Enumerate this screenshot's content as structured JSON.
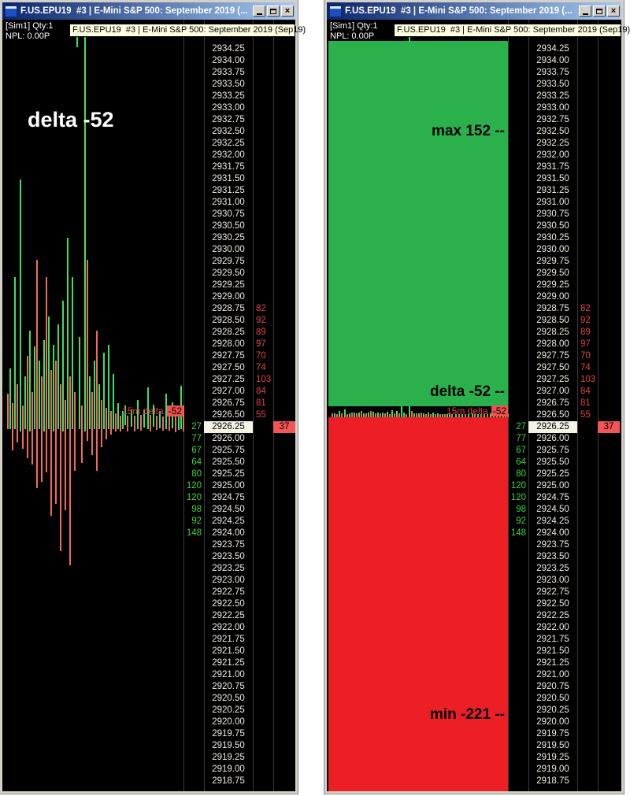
{
  "titlebar": {
    "title": "F.US.EPU19  #3 | E-Mini S&P 500: September 2019 (...",
    "close_glyph": "×"
  },
  "info": {
    "line1": "[Sim1]  Qty:1",
    "line2": "NPL: 0.00P"
  },
  "tooltip": {
    "text": "F.US.EPU19  #3 | E-Mini S&P 500: September 2019 (Sep19)"
  },
  "chart": {
    "big_label": "delta -52",
    "mini_label": "15m delta",
    "mini_value": "-52",
    "bars": [
      [
        6,
        475,
        520,
        "r"
      ],
      [
        9,
        443,
        520,
        "g"
      ],
      [
        12,
        487,
        547,
        "r"
      ],
      [
        15,
        327,
        520,
        "g"
      ],
      [
        18,
        463,
        537,
        "r"
      ],
      [
        22,
        203,
        523,
        "g"
      ],
      [
        25,
        490,
        545,
        "r"
      ],
      [
        28,
        453,
        520,
        "g"
      ],
      [
        31,
        427,
        557,
        "r"
      ],
      [
        34,
        395,
        523,
        "g"
      ],
      [
        37,
        473,
        565,
        "r"
      ],
      [
        40,
        415,
        520,
        "g"
      ],
      [
        43,
        305,
        595,
        "r"
      ],
      [
        46,
        433,
        520,
        "g"
      ],
      [
        49,
        453,
        587,
        "r"
      ],
      [
        52,
        407,
        523,
        "g"
      ],
      [
        55,
        327,
        575,
        "r"
      ],
      [
        58,
        377,
        520,
        "g"
      ],
      [
        61,
        445,
        630,
        "r"
      ],
      [
        64,
        413,
        523,
        "g"
      ],
      [
        67,
        433,
        615,
        "r"
      ],
      [
        70,
        387,
        520,
        "g"
      ],
      [
        73,
        463,
        675,
        "r"
      ],
      [
        76,
        357,
        523,
        "g"
      ],
      [
        79,
        483,
        623,
        "r"
      ],
      [
        82,
        277,
        520,
        "g"
      ],
      [
        85,
        453,
        693,
        "r"
      ],
      [
        88,
        327,
        520,
        "g"
      ],
      [
        91,
        473,
        573,
        "r"
      ],
      [
        94,
        21,
        35,
        "g"
      ],
      [
        97,
        403,
        520,
        "g"
      ],
      [
        100,
        490,
        563,
        "r"
      ],
      [
        104,
        21,
        523,
        "g"
      ],
      [
        107,
        305,
        535,
        "r"
      ],
      [
        110,
        453,
        520,
        "g"
      ],
      [
        113,
        473,
        553,
        "r"
      ],
      [
        116,
        433,
        520,
        "g"
      ],
      [
        119,
        395,
        573,
        "r"
      ],
      [
        122,
        463,
        520,
        "g"
      ],
      [
        125,
        483,
        543,
        "r"
      ],
      [
        128,
        423,
        520,
        "g"
      ],
      [
        131,
        493,
        533,
        "r"
      ],
      [
        134,
        413,
        520,
        "g"
      ],
      [
        137,
        497,
        527,
        "r"
      ],
      [
        140,
        450,
        520,
        "g"
      ],
      [
        143,
        500,
        523,
        "r"
      ],
      [
        146,
        487,
        520,
        "g"
      ],
      [
        149,
        503,
        523,
        "r"
      ],
      [
        152,
        497,
        520,
        "g"
      ],
      [
        155,
        490,
        515,
        "g"
      ],
      [
        158,
        503,
        523,
        "r"
      ],
      [
        163,
        495,
        517,
        "g"
      ],
      [
        167,
        503,
        523,
        "r"
      ],
      [
        171,
        483,
        520,
        "g"
      ],
      [
        175,
        502,
        522,
        "r"
      ],
      [
        179,
        495,
        518,
        "g"
      ],
      [
        184,
        467,
        520,
        "g"
      ],
      [
        187,
        502,
        523,
        "r"
      ],
      [
        191,
        489,
        517,
        "g"
      ],
      [
        195,
        503,
        521,
        "r"
      ],
      [
        199,
        497,
        519,
        "g"
      ],
      [
        203,
        504,
        522,
        "r"
      ],
      [
        207,
        475,
        520,
        "g"
      ],
      [
        211,
        501,
        522,
        "r"
      ],
      [
        215,
        486,
        519,
        "g"
      ],
      [
        219,
        494,
        524,
        "r"
      ],
      [
        223,
        499,
        521,
        "g"
      ],
      [
        226,
        465,
        520,
        "g"
      ],
      [
        229,
        490,
        523,
        "r"
      ]
    ]
  },
  "overlay": {
    "max_label": "max 152 --",
    "delta_label": "delta -52 --",
    "min_label": "min -221 --"
  },
  "ladder": {
    "current_price": "2926.25",
    "last_size": "37",
    "rows": [
      {
        "price": "2934.25"
      },
      {
        "price": "2934.00"
      },
      {
        "price": "2933.75"
      },
      {
        "price": "2933.50"
      },
      {
        "price": "2933.25"
      },
      {
        "price": "2933.00"
      },
      {
        "price": "2932.75"
      },
      {
        "price": "2932.50"
      },
      {
        "price": "2932.25"
      },
      {
        "price": "2932.00"
      },
      {
        "price": "2931.75"
      },
      {
        "price": "2931.50"
      },
      {
        "price": "2931.25"
      },
      {
        "price": "2931.00"
      },
      {
        "price": "2930.75"
      },
      {
        "price": "2930.50"
      },
      {
        "price": "2930.25"
      },
      {
        "price": "2930.00"
      },
      {
        "price": "2929.75"
      },
      {
        "price": "2929.50"
      },
      {
        "price": "2929.25"
      },
      {
        "price": "2929.00"
      },
      {
        "price": "2928.75",
        "ask": "82"
      },
      {
        "price": "2928.50",
        "ask": "92"
      },
      {
        "price": "2928.25",
        "ask": "89"
      },
      {
        "price": "2928.00",
        "ask": "97"
      },
      {
        "price": "2927.75",
        "ask": "70"
      },
      {
        "price": "2927.50",
        "ask": "74"
      },
      {
        "price": "2927.25",
        "ask": "103"
      },
      {
        "price": "2927.00",
        "ask": "84"
      },
      {
        "price": "2926.75",
        "ask": "81"
      },
      {
        "price": "2926.50",
        "ask": "55"
      },
      {
        "price": "2926.25",
        "bid": "27",
        "last": "37",
        "current": true
      },
      {
        "price": "2926.00",
        "bid": "77"
      },
      {
        "price": "2925.75",
        "bid": "67"
      },
      {
        "price": "2925.50",
        "bid": "64"
      },
      {
        "price": "2925.25",
        "bid": "80"
      },
      {
        "price": "2925.00",
        "bid": "120"
      },
      {
        "price": "2924.75",
        "bid": "120"
      },
      {
        "price": "2924.50",
        "bid": "98"
      },
      {
        "price": "2924.25",
        "bid": "92"
      },
      {
        "price": "2924.00",
        "bid": "148"
      },
      {
        "price": "2923.75"
      },
      {
        "price": "2923.50"
      },
      {
        "price": "2923.25"
      },
      {
        "price": "2923.00"
      },
      {
        "price": "2922.75"
      },
      {
        "price": "2922.50"
      },
      {
        "price": "2922.25"
      },
      {
        "price": "2922.00"
      },
      {
        "price": "2921.75"
      },
      {
        "price": "2921.50"
      },
      {
        "price": "2921.25"
      },
      {
        "price": "2921.00"
      },
      {
        "price": "2920.75"
      },
      {
        "price": "2920.50"
      },
      {
        "price": "2920.25"
      },
      {
        "price": "2920.00"
      },
      {
        "price": "2919.75"
      },
      {
        "price": "2919.50"
      },
      {
        "price": "2919.25"
      },
      {
        "price": "2919.00"
      },
      {
        "price": "2918.75"
      }
    ]
  },
  "colors": {
    "titlebar_start": "#0a246a",
    "titlebar_end": "#a6caf0",
    "chrome": "#d4d0c8",
    "grid": "#3a3a3a",
    "price": "#f0ecdd",
    "ask": "#e04545",
    "bid": "#3ed43e",
    "current_bg": "#f5f2e6",
    "last_bg": "#f15555",
    "bar_green": "#3fdf63",
    "bar_red": "#f26a5c",
    "rect_green": "#2bb14c",
    "rect_red": "#ec1f27",
    "tooltip_bg": "#ffffe1",
    "mini_red": "#e04545",
    "mini_box": "#f15050"
  }
}
